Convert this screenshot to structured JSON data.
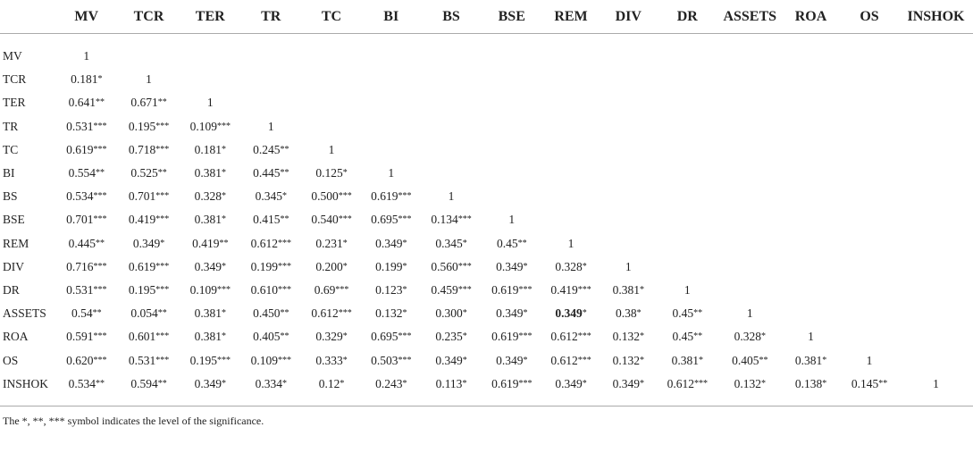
{
  "table": {
    "columns": [
      "MV",
      "TCR",
      "TER",
      "TR",
      "TC",
      "BI",
      "BS",
      "BSE",
      "REM",
      "DIV",
      "DR",
      "ASSETS",
      "ROA",
      "OS",
      "INSHOK"
    ],
    "rows": [
      {
        "label": "MV",
        "cells": [
          "1"
        ]
      },
      {
        "label": "TCR",
        "cells": [
          "0.181*",
          "1"
        ]
      },
      {
        "label": "TER",
        "cells": [
          "0.641**",
          "0.671**",
          "1"
        ]
      },
      {
        "label": "TR",
        "cells": [
          "0.531***",
          "0.195***",
          "0.109***",
          "1"
        ]
      },
      {
        "label": "TC",
        "cells": [
          "0.619***",
          "0.718***",
          "0.181*",
          "0.245**",
          "1"
        ]
      },
      {
        "label": "BI",
        "cells": [
          "0.554**",
          "0.525**",
          "0.381*",
          "0.445**",
          "0.125*",
          "1"
        ]
      },
      {
        "label": "BS",
        "cells": [
          "0.534***",
          "0.701***",
          "0.328*",
          "0.345*",
          "0.500***",
          "0.619***",
          "1"
        ]
      },
      {
        "label": "BSE",
        "cells": [
          "0.701***",
          "0.419***",
          "0.381*",
          "0.415**",
          "0.540***",
          "0.695***",
          "0.134***",
          "1"
        ]
      },
      {
        "label": "REM",
        "cells": [
          "0.445**",
          "0.349*",
          "0.419**",
          "0.612***",
          "0.231*",
          "0.349*",
          "0.345*",
          "0.45**",
          "1"
        ]
      },
      {
        "label": "DIV",
        "cells": [
          "0.716***",
          "0.619***",
          "0.349*",
          "0.199***",
          "0.200*",
          "0.199*",
          "0.560***",
          "0.349*",
          "0.328*",
          "1"
        ]
      },
      {
        "label": "DR",
        "cells": [
          "0.531***",
          "0.195***",
          "0.109***",
          "0.610***",
          "0.69***",
          "0.123*",
          "0.459***",
          "0.619***",
          "0.419***",
          "0.381*",
          "1"
        ]
      },
      {
        "label": "ASSETS",
        "cells": [
          "0.54**",
          "0.054**",
          "0.381*",
          "0.450**",
          "0.612***",
          "0.132*",
          "0.300*",
          "0.349*",
          "0.349*",
          "0.38*",
          "0.45**",
          "1"
        ],
        "bold_cells": [
          8
        ]
      },
      {
        "label": "ROA",
        "cells": [
          "0.591***",
          "0.601***",
          "0.381*",
          "0.405**",
          "0.329*",
          "0.695***",
          "0.235*",
          "0.619***",
          "0.612***",
          "0.132*",
          "0.45**",
          "0.328*",
          "1"
        ]
      },
      {
        "label": "OS",
        "cells": [
          "0.620***",
          "0.531***",
          "0.195***",
          "0.109***",
          "0.333*",
          "0.503***",
          "0.349*",
          "0.349*",
          "0.612***",
          "0.132*",
          "0.381*",
          "0.405**",
          "0.381*",
          "1"
        ]
      },
      {
        "label": "INSHOK",
        "cells": [
          "0.534**",
          "0.594**",
          "0.349*",
          "0.334*",
          "0.12*",
          "0.243*",
          "0.113*",
          "0.619***",
          "0.349*",
          "0.349*",
          "0.612***",
          "0.132*",
          "0.138*",
          "0.145**",
          "1"
        ]
      }
    ],
    "footnote": "The *, **, *** symbol indicates the level of the significance."
  }
}
